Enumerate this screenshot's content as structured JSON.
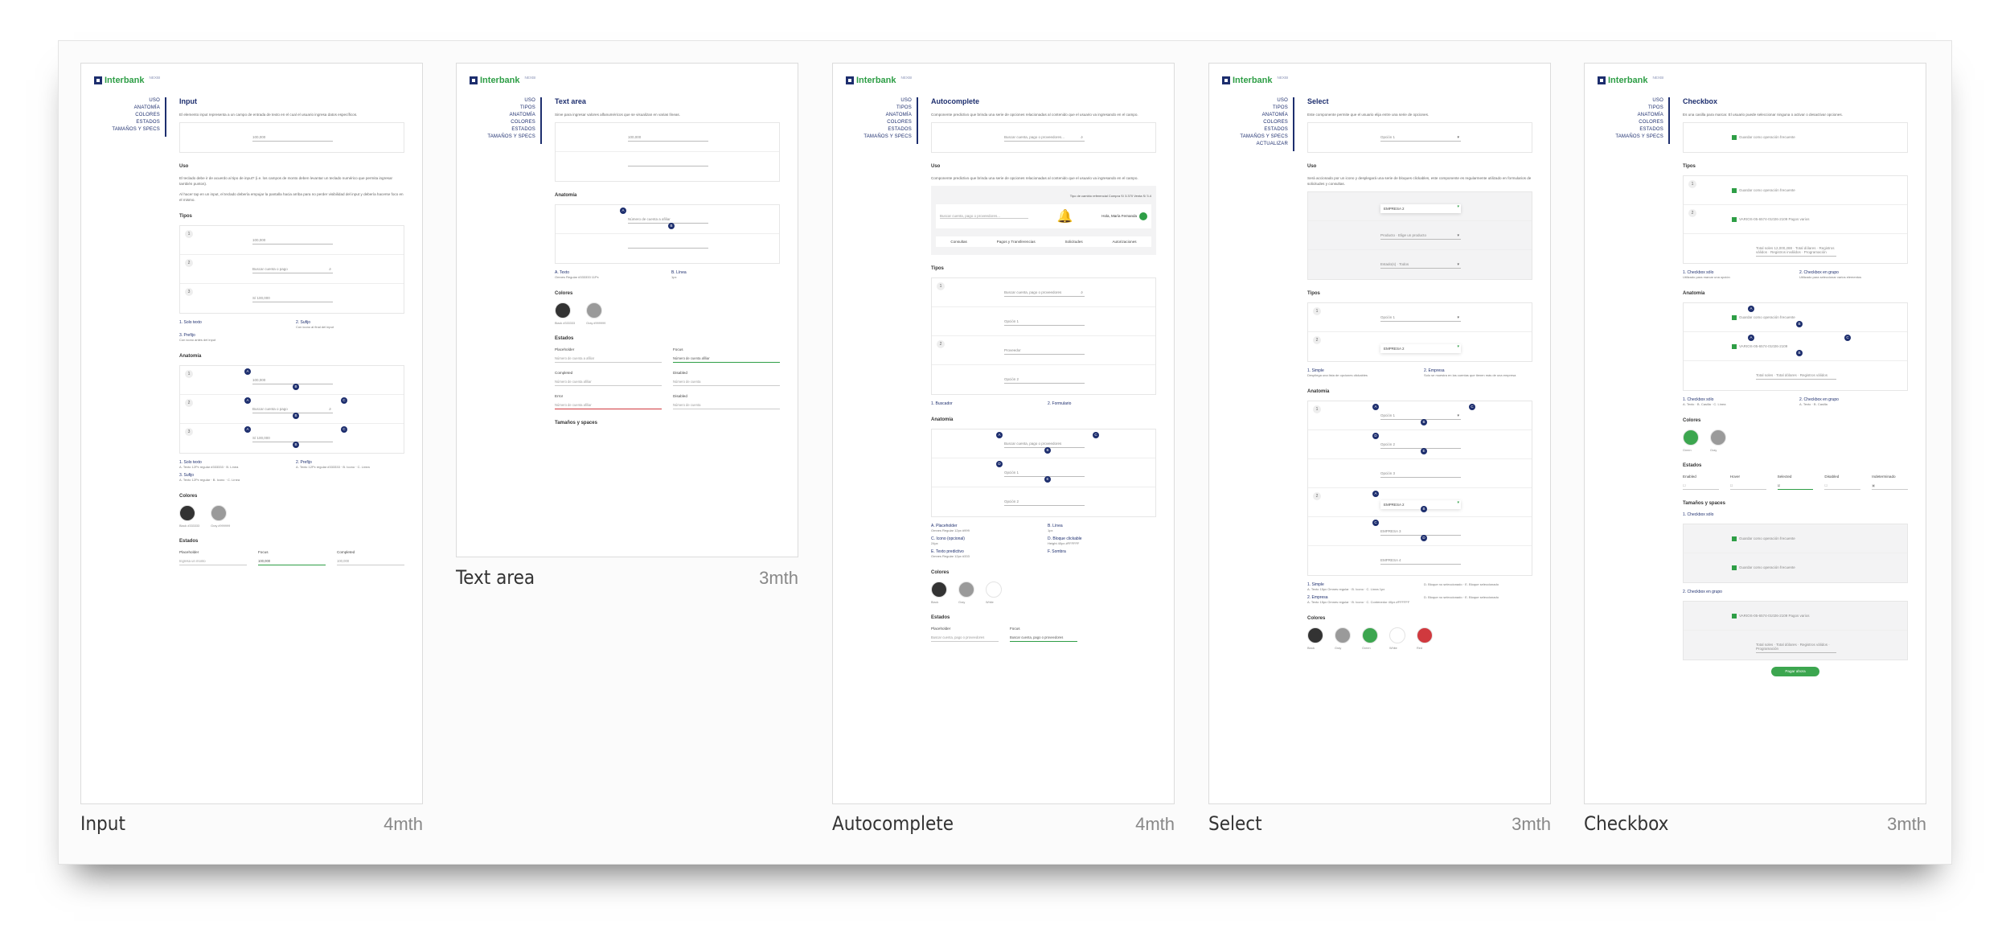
{
  "brand": {
    "name": "Interbank",
    "product": "NEXBI",
    "navy": "#1d2e6e",
    "green": "#2e9e46"
  },
  "cards": [
    {
      "label": "Input",
      "age": "4mth",
      "nav": [
        "USO",
        "ANATOMÍA",
        "COLORES",
        "ESTADOS",
        "TAMAÑOS Y SPECS"
      ],
      "title": "Input",
      "description": "El elemento input representa a un campo de entrada de texto en el cual el usuario ingresa datos específicos.",
      "sections": [
        {
          "type": "box",
          "rows": [
            {
              "field": "100,000"
            }
          ]
        },
        {
          "type": "h2",
          "text": "Uso"
        },
        {
          "type": "p",
          "text": "El teclado debe ir de acuerdo al tipo de input? (i.e. los campos de monto deben levantar un teclado numérico que permita ingresar también puntos)."
        },
        {
          "type": "p",
          "text": "Al hacer tap en un input, el teclado debería empujar la pantalla hacia arriba para no perder visibilidad del input y debería hacerse foco en el mismo."
        },
        {
          "type": "h2",
          "text": "Tipos"
        },
        {
          "type": "box",
          "rows": [
            {
              "num": "1",
              "field": "100,000"
            },
            {
              "num": "2",
              "field": "Buscar cuenta o pago",
              "icon": "⌕"
            },
            {
              "num": "3",
              "field": "S/ 100,000"
            }
          ]
        },
        {
          "type": "list",
          "items": [
            {
              "t": "1. Solo texto",
              "s": ""
            },
            {
              "t": "2. Sufijo",
              "s": "Con icono al final del input"
            },
            {
              "t": "3. Prefijo",
              "s": "Con icono antes del input"
            }
          ]
        },
        {
          "type": "h2",
          "text": "Anatomía"
        },
        {
          "type": "box",
          "rows": [
            {
              "num": "1",
              "field": "100,000",
              "marks": [
                "A",
                "B"
              ]
            },
            {
              "num": "2",
              "field": "Buscar cuenta o pago",
              "icon": "⌕",
              "marks": [
                "A",
                "B",
                "C"
              ]
            },
            {
              "num": "3",
              "field": "S/ 100,000",
              "marks": [
                "A",
                "B",
                "C"
              ]
            }
          ]
        },
        {
          "type": "list",
          "items": [
            {
              "t": "1. Solo texto",
              "s": "A. Texto 12Px regular #333333 · B. Línea"
            },
            {
              "t": "2. Prefijo",
              "s": "A. Texto 12Px regular #333333 · B. Icono · C. Línea"
            },
            {
              "t": "3. Sufijo",
              "s": "A. Texto 12Px regular · B. Icono · C. Línea"
            }
          ]
        },
        {
          "type": "h2",
          "text": "Colores"
        },
        {
          "type": "swatches",
          "items": [
            {
              "name": "Black #333333",
              "hex": "#333333"
            },
            {
              "name": "Gray #999999",
              "hex": "#9a9a9a"
            }
          ]
        },
        {
          "type": "h2",
          "text": "Estados"
        },
        {
          "type": "states",
          "items": [
            {
              "l": "Placeholder",
              "v": "Ingresa un monto"
            },
            {
              "l": "Focus",
              "v": "100,000",
              "k": "focus"
            },
            {
              "l": "Completed",
              "v": "100,000"
            }
          ]
        }
      ]
    },
    {
      "label": "Text area",
      "age": "3mth",
      "nav": [
        "USO",
        "TIPOS",
        "ANATOMÍA",
        "COLORES",
        "ESTADOS",
        "TAMAÑOS Y SPECS"
      ],
      "title": "Text area",
      "description": "Sirve para ingresar valores alfanuméricos que se visualizan en varias líneas.",
      "sections": [
        {
          "type": "box",
          "rows": [
            {
              "field": "100,000"
            },
            {
              "field": ""
            }
          ]
        },
        {
          "type": "h2",
          "text": "Anatomía"
        },
        {
          "type": "box",
          "rows": [
            {
              "field": "Número de cuenta a afiliar",
              "marks": [
                "A",
                "B"
              ]
            },
            {
              "field": ""
            }
          ]
        },
        {
          "type": "list",
          "items": [
            {
              "t": "A. Texto",
              "s": "Omnes Regular #333333 11Px"
            },
            {
              "t": "B. Línea",
              "s": "1px"
            }
          ]
        },
        {
          "type": "h2",
          "text": "Colores"
        },
        {
          "type": "swatches",
          "items": [
            {
              "name": "Black #333333",
              "hex": "#333333"
            },
            {
              "name": "Gray #999999",
              "hex": "#9a9a9a"
            }
          ]
        },
        {
          "type": "h2",
          "text": "Estados"
        },
        {
          "type": "states2",
          "items": [
            {
              "l": "Placeholder",
              "v": "Número de cuenta a afiliar"
            },
            {
              "l": "Focus",
              "v": "Número de cuenta afiliar",
              "k": "focus"
            },
            {
              "l": "Completed",
              "v": "Número de cuenta afiliar"
            },
            {
              "l": "Disabled",
              "v": "Número de cuenta"
            },
            {
              "l": "Error",
              "v": "Número de cuenta afiliar",
              "k": "error"
            },
            {
              "l": "Disabled",
              "v": "Número de cuenta"
            }
          ]
        },
        {
          "type": "h2",
          "text": "Tamaños y spaces"
        }
      ]
    },
    {
      "label": "Autocomplete",
      "age": "4mth",
      "nav": [
        "USO",
        "TIPOS",
        "ANATOMÍA",
        "COLORES",
        "ESTADOS",
        "TAMAÑOS Y SPECS"
      ],
      "title": "Autocomplete",
      "description": "Componente predictivo que brinda una serie de opciones relacionadas al contenido que el usuario va ingresando en el campo.",
      "sections": [
        {
          "type": "box",
          "rows": [
            {
              "field": "Buscar cuenta, pago o proveedores...",
              "icon": "⌕"
            }
          ]
        },
        {
          "type": "h2",
          "text": "Uso"
        },
        {
          "type": "p",
          "text": "Componente predictivo que brinda una serie de opciones relacionadas al contenido que el usuario va ingresando en el campo."
        },
        {
          "type": "navbar",
          "rate": "Tipo de cambio referencial   Compra S/ 3.370   Venta S/ 3.4",
          "search": "Buscar cuenta, pago o proveedores...",
          "greeting": "Hola, María Fernanda",
          "tabs": [
            "Consultas",
            "Pagos y Transferencias",
            "Solicitudes",
            "Autorizaciones"
          ]
        },
        {
          "type": "h2",
          "text": "Tipos"
        },
        {
          "type": "box",
          "rows": [
            {
              "num": "1",
              "field": "Buscar cuenta, pago o proveedores",
              "icon": "⌕"
            },
            {
              "field": "Opción 1"
            },
            {
              "num": "2",
              "field": "Proveedor"
            },
            {
              "field": "Opción 2"
            }
          ]
        },
        {
          "type": "list",
          "items": [
            {
              "t": "1. Buscador",
              "s": ""
            },
            {
              "t": "2. Formulario",
              "s": ""
            }
          ]
        },
        {
          "type": "h2",
          "text": "Anatomía"
        },
        {
          "type": "box",
          "rows": [
            {
              "field": "Buscar cuenta, pago o proveedores",
              "marks": [
                "A",
                "B",
                "C"
              ]
            },
            {
              "field": "Opción 1",
              "marks": [
                "D",
                "E"
              ]
            },
            {
              "field": "Opción 2"
            }
          ]
        },
        {
          "type": "list",
          "items": [
            {
              "t": "A. Placeholder",
              "s": "Omnes Regular 12px #999"
            },
            {
              "t": "B. Línea",
              "s": "1px"
            },
            {
              "t": "C. Icono (opcional)",
              "s": "24px"
            },
            {
              "t": "D. Bloque clickable",
              "s": "Height 40px #FFFFFF"
            },
            {
              "t": "E. Texto predictivo",
              "s": "Omnes Regular 12px #333"
            },
            {
              "t": "F. Sombra",
              "s": ""
            }
          ]
        },
        {
          "type": "h2",
          "text": "Colores"
        },
        {
          "type": "swatches",
          "items": [
            {
              "name": "Black",
              "hex": "#333333"
            },
            {
              "name": "Gray",
              "hex": "#9a9a9a"
            },
            {
              "name": "White",
              "hex": "#ffffff"
            }
          ]
        },
        {
          "type": "h2",
          "text": "Estados"
        },
        {
          "type": "states",
          "items": [
            {
              "l": "Placeholder",
              "v": "Buscar cuenta, pago o proveedores"
            },
            {
              "l": "Focus",
              "v": "Buscar cuenta, pago o proveedores",
              "k": "focus"
            }
          ]
        }
      ]
    },
    {
      "label": "Select",
      "age": "3mth",
      "nav": [
        "USO",
        "TIPOS",
        "ANATOMÍA",
        "COLORES",
        "ESTADOS",
        "TAMAÑOS Y SPECS",
        "ACTUALIZAR"
      ],
      "title": "Select",
      "description": "Este componente permite que el usuario elija entre una serie de opciones.",
      "sections": [
        {
          "type": "box",
          "rows": [
            {
              "field": "Opción 1",
              "icon": "▾"
            }
          ]
        },
        {
          "type": "h2",
          "text": "Uso"
        },
        {
          "type": "p",
          "text": "Será accionado por un icono y desplegará una serie de bloques clickables, este componente es regularmente utilizado en formularios de solicitudes y consultas."
        },
        {
          "type": "box",
          "grey": true,
          "rows": [
            {
              "field": "EMPRESA 2",
              "icon": "▾",
              "sel": true
            },
            {
              "field": "Producto · Elige un producto",
              "icon": "▾"
            },
            {
              "field": "Estado(s) · Todos",
              "icon": "▾"
            }
          ]
        },
        {
          "type": "h2",
          "text": "Tipos"
        },
        {
          "type": "box",
          "rows": [
            {
              "num": "1",
              "field": "Opción 1",
              "icon": "▾"
            },
            {
              "num": "2",
              "field": "EMPRESA 2",
              "icon": "▾",
              "sel": true
            }
          ]
        },
        {
          "type": "list",
          "items": [
            {
              "t": "1. Simple",
              "s": "Despliega una lista de opciones clickables"
            },
            {
              "t": "2. Empresa",
              "s": "Solo se muestra en las cuentas que tienen más de una empresa"
            }
          ]
        },
        {
          "type": "h2",
          "text": "Anatomía"
        },
        {
          "type": "box",
          "rows": [
            {
              "num": "1",
              "field": "Opción 1",
              "icon": "▾",
              "marks": [
                "A",
                "B",
                "C"
              ]
            },
            {
              "field": "Opción 2",
              "marks": [
                "D",
                "E"
              ]
            },
            {
              "field": "Opción 3"
            },
            {
              "num": "2",
              "field": "EMPRESA 2",
              "icon": "▾",
              "sel": true,
              "marks": [
                "A",
                "B"
              ]
            },
            {
              "field": "EMPRESA 3",
              "marks": [
                "C",
                "D"
              ]
            },
            {
              "field": "EMPRESA 4"
            }
          ]
        },
        {
          "type": "list",
          "items": [
            {
              "t": "1. Simple",
              "s": "A. Texto 15px Omnes regular · B. Icono · C. Línea 1px"
            },
            {
              "t": "",
              "s": "D. Bloque no seleccionado · E. Bloque seleccionado"
            },
            {
              "t": "2. Empresa",
              "s": "A. Texto 15px Omnes regular · B. Icono · C. Contenedor 40px #FFFFFF"
            },
            {
              "t": "",
              "s": "D. Bloque no seleccionado · E. Bloque seleccionado"
            }
          ]
        },
        {
          "type": "h2",
          "text": "Colores"
        },
        {
          "type": "swatches",
          "items": [
            {
              "name": "Black",
              "hex": "#333333"
            },
            {
              "name": "Gray",
              "hex": "#9a9a9a"
            },
            {
              "name": "Green",
              "hex": "#3ca64f"
            },
            {
              "name": "White",
              "hex": "#ffffff"
            },
            {
              "name": "Red",
              "hex": "#d0393e"
            }
          ]
        }
      ]
    },
    {
      "label": "Checkbox",
      "age": "3mth",
      "nav": [
        "USO",
        "TIPOS",
        "ANATOMÍA",
        "COLORES",
        "ESTADOS",
        "TAMAÑOS Y SPECS"
      ],
      "title": "Checkbox",
      "description": "Es una casilla para marcar. El usuario puede seleccionar ninguna o activar o desactivar opciones.",
      "sections": [
        {
          "type": "box",
          "rows": [
            {
              "field": "Guardar como operación frecuente",
              "check": true
            }
          ]
        },
        {
          "type": "h2",
          "text": "Tipos"
        },
        {
          "type": "box",
          "rows": [
            {
              "num": "1",
              "field": "Guardar como operación frecuente",
              "check": true
            },
            {
              "num": "2",
              "field": "VARIOS-05-6574-01026-2109   Pagos varios",
              "check": true
            },
            {
              "field": "Total soles 12,000,288  ·  Total dólares  ·  Registros válidos  ·  Registros inválidos  ·  Programación"
            }
          ]
        },
        {
          "type": "list",
          "items": [
            {
              "t": "1. Checkbox sólo",
              "s": "Utilizado para marcar una opción"
            },
            {
              "t": "2. Checkbox en grupo",
              "s": "Utilizado para seleccionar varios elementos"
            }
          ]
        },
        {
          "type": "h2",
          "text": "Anatomía"
        },
        {
          "type": "box",
          "rows": [
            {
              "field": "Guardar como operación frecuente",
              "check": true,
              "marks": [
                "A",
                "B"
              ]
            },
            {
              "field": "VARIOS-05-6574-01026-2109",
              "check": true,
              "marks": [
                "A",
                "B",
                "C"
              ]
            },
            {
              "field": "Total soles  ·  Total dólares  ·  Registros válidos"
            }
          ]
        },
        {
          "type": "list",
          "items": [
            {
              "t": "1. Checkbox sólo",
              "s": "A. Texto · B. Casilla · C. Línea"
            },
            {
              "t": "2. Checkbox en grupo",
              "s": "A. Texto · B. Casilla"
            }
          ]
        },
        {
          "type": "h2",
          "text": "Colores"
        },
        {
          "type": "swatches",
          "items": [
            {
              "name": "Green",
              "hex": "#3ca64f"
            },
            {
              "name": "Gray",
              "hex": "#9a9a9a"
            }
          ]
        },
        {
          "type": "h2",
          "text": "Estados"
        },
        {
          "type": "states",
          "items": [
            {
              "l": "Enabled",
              "v": "☐"
            },
            {
              "l": "Hover",
              "v": "☐"
            },
            {
              "l": "Selected",
              "v": "☑",
              "k": "focus"
            },
            {
              "l": "Disabled",
              "v": "☐"
            },
            {
              "l": "Indeterminado",
              "v": "▣"
            }
          ]
        },
        {
          "type": "h2",
          "text": "Tamaños y spaces"
        },
        {
          "type": "list",
          "items": [
            {
              "t": "1. Checkbox sólo",
              "s": ""
            }
          ]
        },
        {
          "type": "box",
          "grey": true,
          "rows": [
            {
              "field": "Guardar como operación frecuente",
              "check": true
            },
            {
              "field": "Guardar como operación frecuente",
              "check": true
            }
          ]
        },
        {
          "type": "list",
          "items": [
            {
              "t": "2. Checkbox en grupo",
              "s": ""
            }
          ]
        },
        {
          "type": "box",
          "grey": true,
          "rows": [
            {
              "field": "VARIOS-05-6574-01026-2109   Pagos varios",
              "check": true
            },
            {
              "field": "Total soles  ·  Total dólares  ·  Registros válidos  ·  Programación"
            }
          ]
        },
        {
          "type": "button",
          "text": "Pagar ahora"
        }
      ]
    }
  ]
}
